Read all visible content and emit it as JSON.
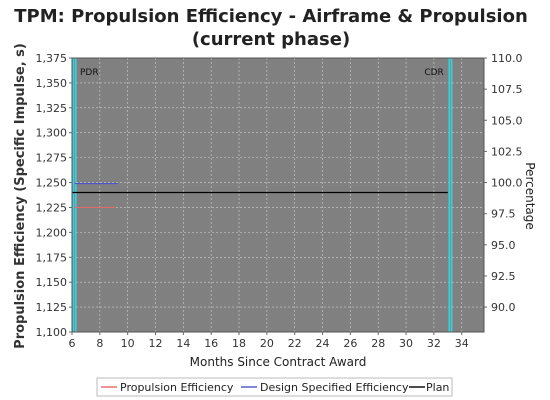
{
  "chart_data": {
    "type": "line",
    "title_line1": "TPM: Propulsion Efficiency - Airframe & Propulsion",
    "title_line2": "(current phase)",
    "xlabel": "Months Since Contract Award",
    "ylabel_left": "Propulsion Efficiency (Specific Impulse, s)",
    "ylabel_right": "Percentage",
    "xlim": [
      6,
      35.6
    ],
    "ylim_left": [
      1100,
      1375
    ],
    "ylim_right": [
      88,
      110
    ],
    "x_ticks": [
      6,
      8,
      10,
      12,
      14,
      16,
      18,
      20,
      22,
      24,
      26,
      28,
      30,
      32,
      34
    ],
    "y_left_ticks": [
      "1,100",
      "1,125",
      "1,150",
      "1,175",
      "1,200",
      "1,225",
      "1,250",
      "1,275",
      "1,300",
      "1,325",
      "1,350",
      "1,375"
    ],
    "y_right_ticks": [
      "90.0",
      "92.5",
      "95.0",
      "97.5",
      "100.0",
      "102.5",
      "105.0",
      "107.5",
      "110.0"
    ],
    "grid": true,
    "legend_position": "bottom",
    "plot_background": "#808080",
    "series": [
      {
        "name": "Propulsion Efficiency",
        "color": "#e26a6a",
        "x": [
          6.2,
          9.1
        ],
        "y": [
          1225,
          1225
        ]
      },
      {
        "name": "Design Specified Efficiency",
        "color": "#4a55c8",
        "x": [
          6.2,
          9.3
        ],
        "y": [
          1249,
          1249
        ]
      },
      {
        "name": "Plan",
        "color": "#000000",
        "x": [
          6.0,
          33.0
        ],
        "y": [
          1240,
          1240
        ]
      }
    ],
    "milestones": [
      {
        "label": "PDR",
        "x": 6.0,
        "color": "#36d1e0"
      },
      {
        "label": "CDR",
        "x": 33.0,
        "color": "#36d1e0"
      }
    ]
  }
}
